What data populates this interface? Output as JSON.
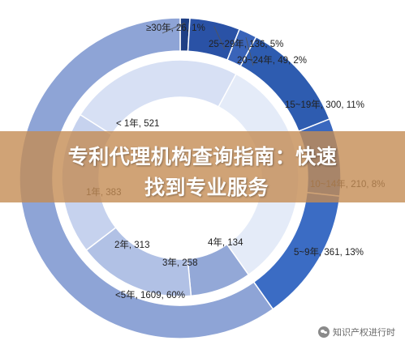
{
  "chart_data": [
    {
      "type": "pie",
      "variant": "donut-outer-ring",
      "labels": [
        "≥30年, 26, 1%",
        "25~29年, 136, 5%",
        "20~24年, 49, 2%",
        "15~19年, 300, 11%",
        "10~14年, 210, 8%",
        "5~9年, 361, 13%",
        "<5年, 1609, 60%"
      ],
      "categories": [
        "≥30年",
        "25~29年",
        "20~24年",
        "15~19年",
        "10~14年",
        "5~9年",
        "<5年"
      ],
      "values": [
        26,
        136,
        49,
        300,
        210,
        361,
        1609
      ],
      "percent": [
        1,
        5,
        2,
        11,
        8,
        13,
        60
      ],
      "colors": [
        "#1f3f85",
        "#2a52a6",
        "#3a64b9",
        "#2e5cb0",
        "#3a68bf",
        "#3b6cc4",
        "#8ea4d6"
      ]
    },
    {
      "type": "pie",
      "variant": "donut-inner-ring",
      "labels": [
        "4年, 134",
        "3年, 258",
        "2年, 313",
        "1年, 383",
        "< 1年, 521"
      ],
      "categories": [
        "4年",
        "3年",
        "2年",
        "1年",
        "< 1年"
      ],
      "values": [
        134,
        258,
        313,
        383,
        521
      ],
      "colors": [
        "#93a8d7",
        "#b1c1e5",
        "#c6d2ee",
        "#d7e0f4",
        "#e4ebf8"
      ]
    }
  ],
  "banner": {
    "line1": "专利代理机构查询指南：快速",
    "line2": "找到专业服务"
  },
  "watermark": {
    "text": "知识产权进行时"
  }
}
